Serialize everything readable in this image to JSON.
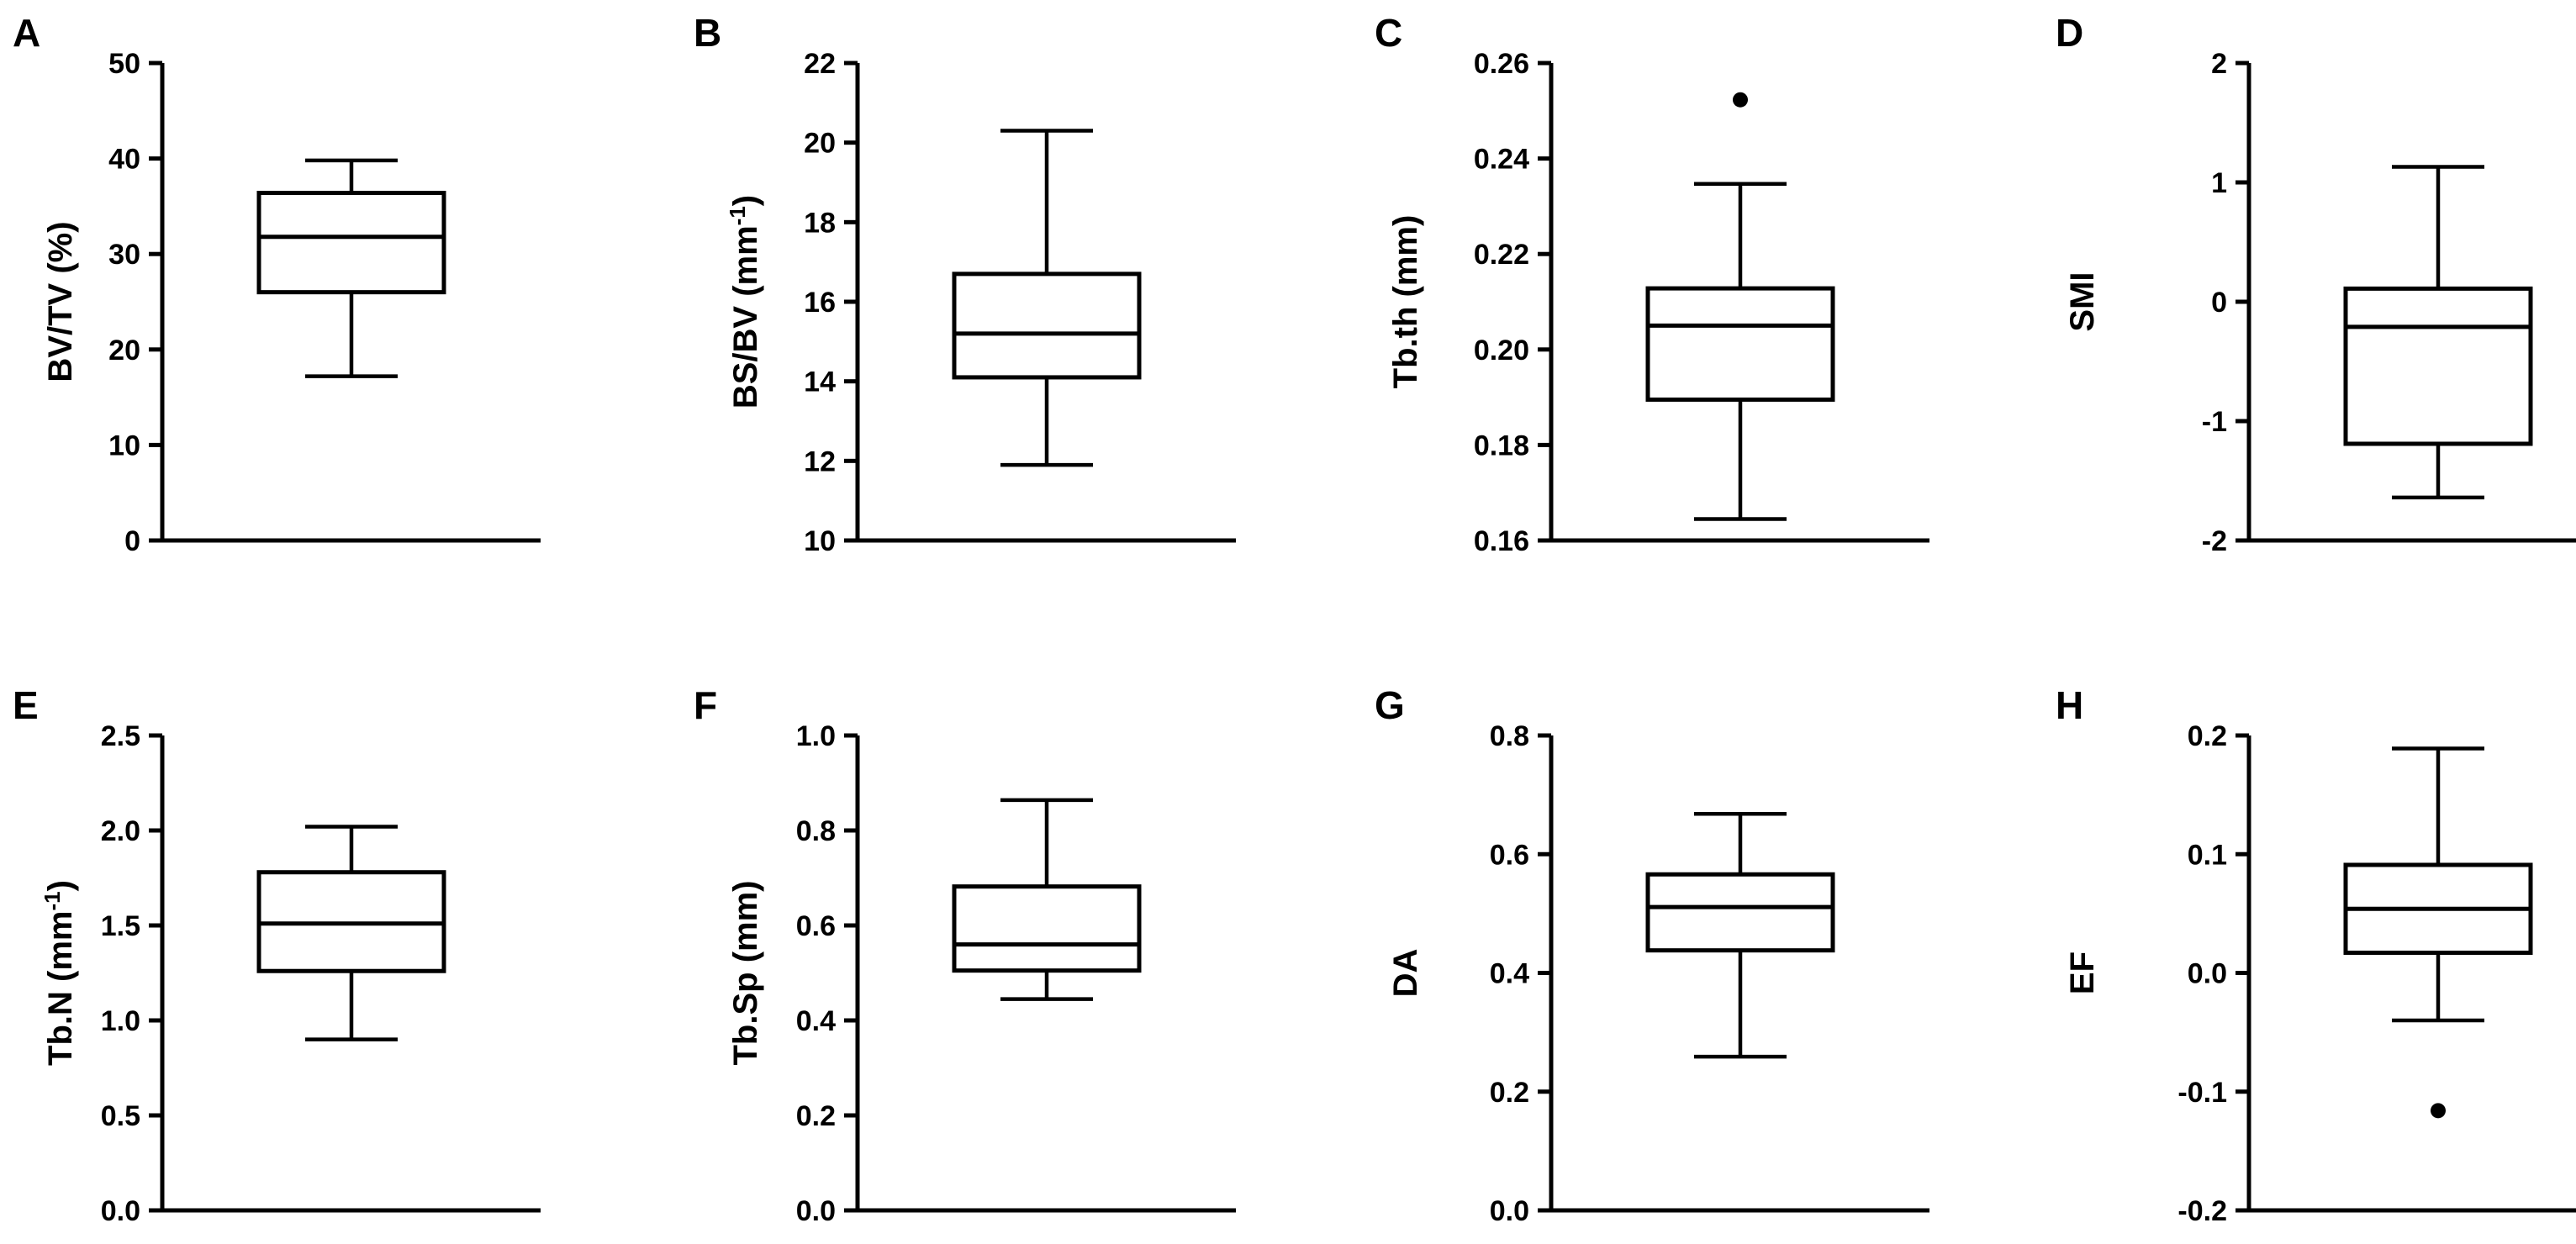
{
  "chart_data": [
    {
      "type": "box",
      "panel": "A",
      "ylabel": "BV/TV (%)",
      "ylim": [
        0,
        50
      ],
      "ticks": [
        "0",
        "10",
        "20",
        "30",
        "40",
        "50"
      ],
      "stats": {
        "min": 17.2,
        "q1": 26.0,
        "median": 31.8,
        "q3": 36.4,
        "max": 39.8
      },
      "outliers": []
    },
    {
      "type": "box",
      "panel": "B",
      "ylabel": "BS/BV (mm",
      "ylabel_sup": "-1",
      "ylabel_suffix": ")",
      "ylim": [
        10,
        22
      ],
      "ticks": [
        "10",
        "12",
        "14",
        "16",
        "18",
        "20",
        "22"
      ],
      "stats": {
        "min": 11.9,
        "q1": 14.1,
        "median": 15.2,
        "q3": 16.7,
        "max": 20.3
      },
      "outliers": []
    },
    {
      "type": "box",
      "panel": "C",
      "ylabel": "Tb.th (mm)",
      "ylim": [
        0.16,
        0.26
      ],
      "ticks": [
        "0.16",
        "0.18",
        "0.20",
        "0.22",
        "0.24",
        "0.26"
      ],
      "stats": {
        "min": 0.1645,
        "q1": 0.1895,
        "median": 0.205,
        "q3": 0.2128,
        "max": 0.2347
      },
      "outliers": [
        0.2523
      ]
    },
    {
      "type": "box",
      "panel": "D",
      "ylabel": "SMI",
      "ylim": [
        -2,
        2
      ],
      "ticks": [
        "-2",
        "-1",
        "0",
        "1",
        "2"
      ],
      "stats": {
        "min": -1.64,
        "q1": -1.19,
        "median": -0.21,
        "q3": 0.11,
        "max": 1.13
      },
      "outliers": []
    },
    {
      "type": "box",
      "panel": "E",
      "ylabel": "Tb.N (mm",
      "ylabel_sup": "-1",
      "ylabel_suffix": ")",
      "ylim": [
        0,
        2.5
      ],
      "ticks": [
        "0.0",
        "0.5",
        "1.0",
        "1.5",
        "2.0",
        "2.5"
      ],
      "stats": {
        "min": 0.9,
        "q1": 1.26,
        "median": 1.51,
        "q3": 1.78,
        "max": 2.02
      },
      "outliers": []
    },
    {
      "type": "box",
      "panel": "F",
      "ylabel": "Tb.Sp (mm)",
      "ylim": [
        0,
        1
      ],
      "ticks": [
        "0.0",
        "0.2",
        "0.4",
        "0.6",
        "0.8",
        "1.0"
      ],
      "stats": {
        "min": 0.445,
        "q1": 0.505,
        "median": 0.56,
        "q3": 0.682,
        "max": 0.864
      },
      "outliers": []
    },
    {
      "type": "box",
      "panel": "G",
      "ylabel": "DA",
      "ylim": [
        0,
        0.8
      ],
      "ticks": [
        "0.0",
        "0.2",
        "0.4",
        "0.6",
        "0.8"
      ],
      "stats": {
        "min": 0.259,
        "q1": 0.438,
        "median": 0.511,
        "q3": 0.566,
        "max": 0.668
      },
      "outliers": []
    },
    {
      "type": "box",
      "panel": "H",
      "ylabel": "EF",
      "ylim": [
        -0.2,
        0.2
      ],
      "ticks": [
        "-0.2",
        "-0.1",
        "0.0",
        "0.1",
        "0.2"
      ],
      "stats": {
        "min": -0.04,
        "q1": 0.017,
        "median": 0.054,
        "q3": 0.091,
        "max": 0.189
      },
      "outliers": [
        -0.116
      ]
    }
  ]
}
